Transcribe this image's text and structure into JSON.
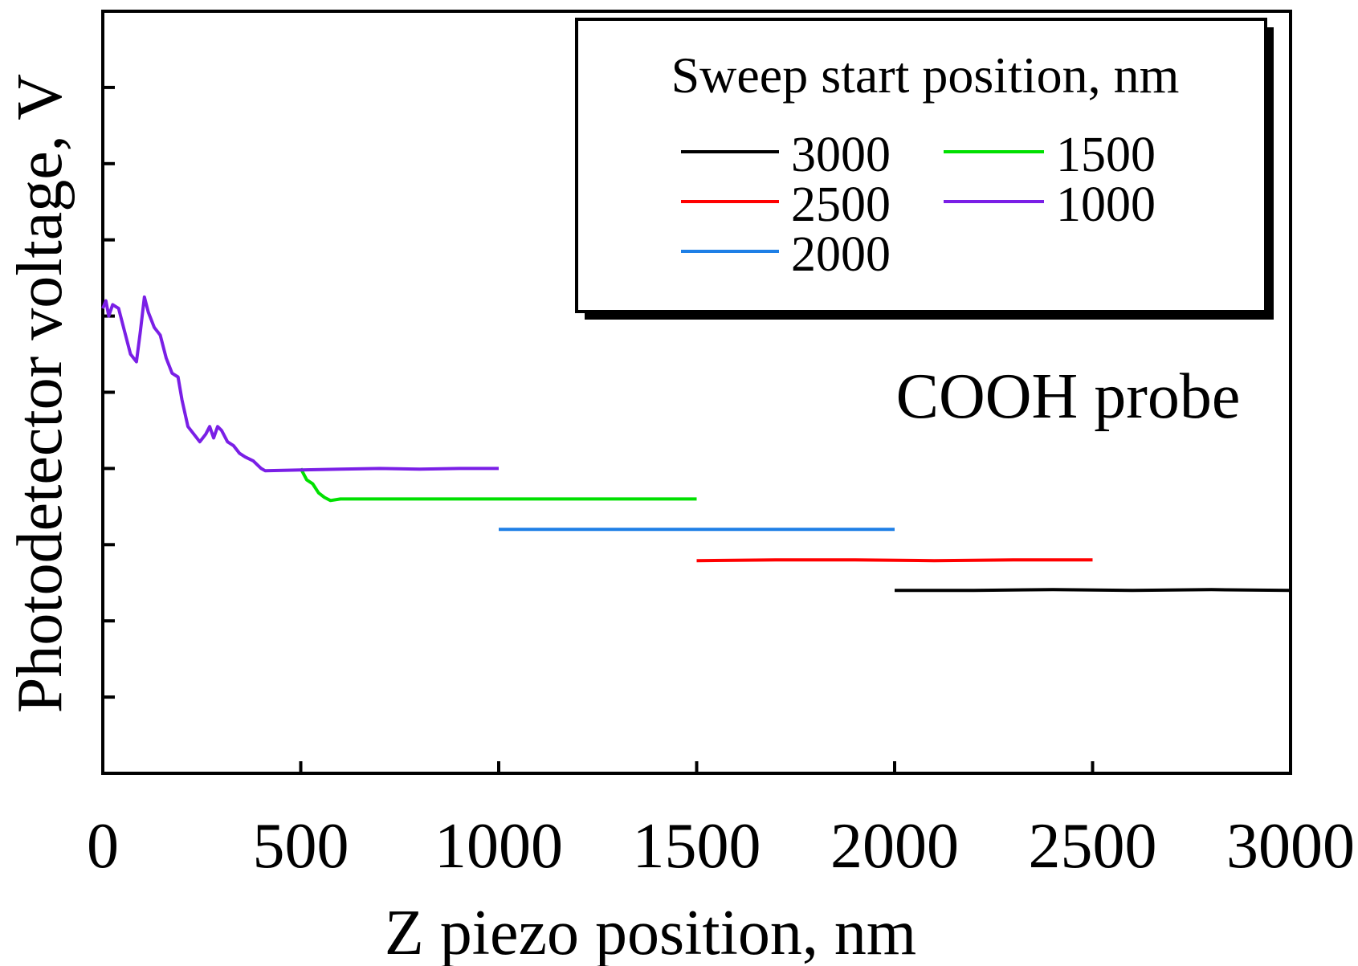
{
  "chart_data": {
    "type": "line",
    "title": "",
    "xlabel": "Z piezo position, nm",
    "ylabel": "Photodetector voltage, V",
    "xlim": [
      0,
      3000
    ],
    "ylim": [
      0,
      1
    ],
    "x_ticks": [
      "0",
      "500",
      "1000",
      "1500",
      "2000",
      "2500",
      "3000"
    ],
    "x_tick_values": [
      0,
      500,
      1000,
      1500,
      2000,
      2500,
      3000
    ],
    "y_tick_values": [
      0.1,
      0.2,
      0.3,
      0.4,
      0.5,
      0.6,
      0.7,
      0.8,
      0.9
    ],
    "y_tick_labels_shown": false,
    "grid": false,
    "annotation": "COOH probe",
    "legend": {
      "title": "Sweep start position, nm",
      "placement": "top-right"
    },
    "series": [
      {
        "name": "3000",
        "color": "#000000",
        "x": [
          2000,
          2200,
          2400,
          2600,
          2800,
          3000
        ],
        "y": [
          0.24,
          0.24,
          0.241,
          0.24,
          0.241,
          0.24
        ]
      },
      {
        "name": "2500",
        "color": "#ff0000",
        "x": [
          1500,
          1700,
          1900,
          2100,
          2300,
          2500
        ],
        "y": [
          0.279,
          0.28,
          0.28,
          0.279,
          0.28,
          0.28
        ]
      },
      {
        "name": "2000",
        "color": "#1e7fe6",
        "x": [
          1000,
          1200,
          1400,
          1600,
          1800,
          2000
        ],
        "y": [
          0.32,
          0.32,
          0.32,
          0.32,
          0.32,
          0.32
        ]
      },
      {
        "name": "1500",
        "color": "#00e000",
        "x": [
          500,
          515,
          530,
          545,
          560,
          575,
          600,
          800,
          1000,
          1200,
          1500
        ],
        "y": [
          0.4,
          0.385,
          0.38,
          0.368,
          0.362,
          0.358,
          0.36,
          0.36,
          0.36,
          0.36,
          0.36
        ]
      },
      {
        "name": "1000",
        "color": "#7a1fe6",
        "x": [
          0,
          8,
          15,
          25,
          40,
          55,
          70,
          85,
          95,
          105,
          115,
          130,
          145,
          160,
          175,
          190,
          200,
          215,
          230,
          245,
          260,
          270,
          280,
          290,
          300,
          315,
          330,
          345,
          360,
          380,
          400,
          410,
          500,
          600,
          700,
          800,
          900,
          1000
        ],
        "y": [
          0.61,
          0.62,
          0.6,
          0.615,
          0.61,
          0.58,
          0.55,
          0.54,
          0.58,
          0.625,
          0.605,
          0.585,
          0.575,
          0.545,
          0.525,
          0.52,
          0.49,
          0.455,
          0.445,
          0.435,
          0.445,
          0.455,
          0.44,
          0.455,
          0.45,
          0.435,
          0.43,
          0.42,
          0.415,
          0.41,
          0.4,
          0.397,
          0.398,
          0.399,
          0.4,
          0.399,
          0.4,
          0.4
        ]
      }
    ]
  }
}
